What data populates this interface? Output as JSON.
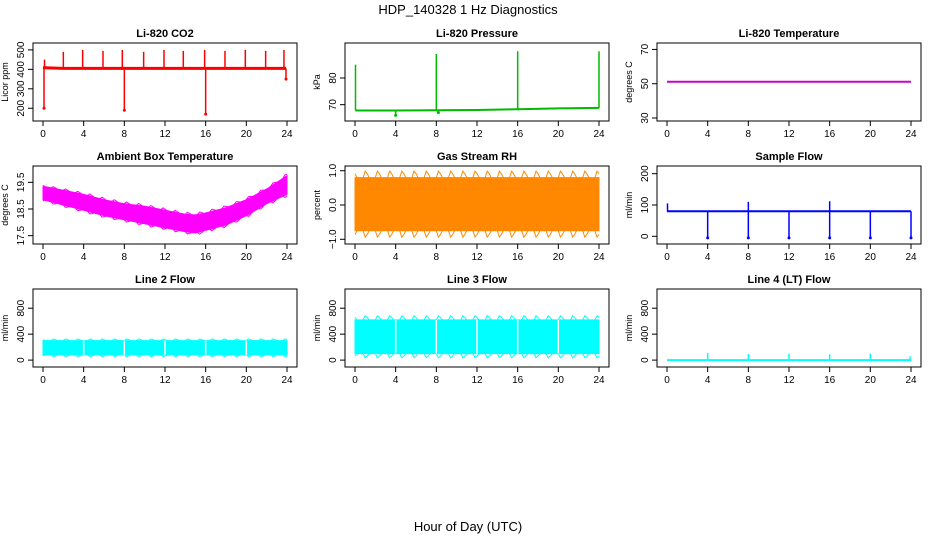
{
  "figure": {
    "title": "HDP_140328  1 Hz Diagnostics",
    "xlabel": "Hour of Day (UTC)"
  },
  "chart_data": [
    {
      "type": "line",
      "title": "Li-820 CO2",
      "ylabel": "Licor ppm",
      "color": "#ff0000",
      "xlim": [
        0,
        24
      ],
      "xticks": [
        0,
        4,
        8,
        12,
        16,
        20,
        24
      ],
      "ylim": [
        150,
        520
      ],
      "yticks": [
        200,
        300,
        400,
        500
      ],
      "ytick_labels": [
        "200",
        "300",
        "400",
        "500"
      ],
      "series": [
        {
          "x": [
            0,
            0.2,
            2,
            4,
            8,
            12,
            16,
            20,
            23.9
          ],
          "y": [
            410,
            408,
            405,
            405,
            405,
            405,
            405,
            405,
            405
          ],
          "spikes_high": [
            [
              0.15,
              450
            ],
            [
              2.0,
              490
            ],
            [
              3.9,
              500
            ],
            [
              5.9,
              495
            ],
            [
              7.8,
              500
            ],
            [
              9.9,
              490
            ],
            [
              11.9,
              500
            ],
            [
              13.8,
              495
            ],
            [
              15.9,
              500
            ],
            [
              17.9,
              495
            ],
            [
              19.9,
              500
            ],
            [
              21.9,
              495
            ],
            [
              23.7,
              500
            ]
          ],
          "spikes_low": [
            [
              0.1,
              200
            ],
            [
              8.0,
              190
            ],
            [
              16.0,
              170
            ],
            [
              23.9,
              350
            ]
          ]
        }
      ]
    },
    {
      "type": "line",
      "title": "Li-820 Pressure",
      "ylabel": "kPa",
      "color": "#00bb00",
      "xlim": [
        0,
        24
      ],
      "xticks": [
        0,
        4,
        8,
        12,
        16,
        20,
        24
      ],
      "ylim": [
        65,
        92
      ],
      "yticks": [
        70,
        80
      ],
      "ytick_labels": [
        "70",
        "80"
      ],
      "series": [
        {
          "x": [
            0.05,
            4,
            8,
            12,
            16,
            20,
            24
          ],
          "y": [
            67.8,
            67.8,
            67.9,
            68.0,
            68.3,
            68.6,
            68.8
          ],
          "spikes_high": [
            [
              0.05,
              85
            ],
            [
              8.0,
              89
            ],
            [
              16.0,
              90
            ],
            [
              24.0,
              90
            ]
          ],
          "spikes_low": [
            [
              4.0,
              66
            ],
            [
              8.2,
              67
            ]
          ]
        }
      ]
    },
    {
      "type": "line",
      "title": "Li-820 Temperature",
      "ylabel": "degrees C",
      "color": "#cc00cc",
      "xlim": [
        0,
        24
      ],
      "xticks": [
        0,
        4,
        8,
        12,
        16,
        20,
        24
      ],
      "ylim": [
        30,
        72
      ],
      "yticks": [
        30,
        50,
        70
      ],
      "ytick_labels": [
        "30",
        "50",
        "70"
      ],
      "series": [
        {
          "x": [
            0,
            24
          ],
          "y": [
            51.2,
            51.2
          ]
        }
      ]
    },
    {
      "type": "area",
      "title": "Ambient Box Temperature",
      "ylabel": "degrees C",
      "color": "#ff00ff",
      "xlim": [
        0,
        24
      ],
      "xticks": [
        0,
        4,
        8,
        12,
        16,
        20,
        24
      ],
      "ylim": [
        17.3,
        20.0
      ],
      "yticks": [
        17.5,
        18.5,
        19.5
      ],
      "ytick_labels": [
        "17.5",
        "18.5",
        "19.5"
      ],
      "series": [
        {
          "x": [
            0,
            2,
            4,
            6,
            8,
            10,
            12,
            14,
            15,
            16,
            18,
            20,
            22,
            24
          ],
          "upper": [
            19.35,
            19.2,
            19.05,
            18.85,
            18.7,
            18.6,
            18.45,
            18.3,
            18.28,
            18.35,
            18.55,
            18.85,
            19.25,
            19.75
          ],
          "lower": [
            18.85,
            18.65,
            18.45,
            18.25,
            18.1,
            17.95,
            17.8,
            17.65,
            17.6,
            17.7,
            17.9,
            18.25,
            18.7,
            19.05
          ]
        }
      ]
    },
    {
      "type": "area",
      "title": "Gas Stream RH",
      "ylabel": "percent",
      "color": "#ff8800",
      "xlim": [
        0,
        24
      ],
      "xticks": [
        0,
        4,
        8,
        12,
        16,
        20,
        24
      ],
      "ylim": [
        -1.05,
        1.05
      ],
      "yticks": [
        -1.0,
        0.0,
        1.0
      ],
      "ytick_labels": [
        "−1.0",
        "0.0",
        "1.0"
      ],
      "series": [
        {
          "x": [
            0,
            24
          ],
          "upper": [
            0.8,
            0.8
          ],
          "lower": [
            -0.75,
            -0.75
          ]
        }
      ]
    },
    {
      "type": "line",
      "title": "Sample Flow",
      "ylabel": "ml/min",
      "color": "#0000ff",
      "xlim": [
        0,
        24
      ],
      "xticks": [
        0,
        4,
        8,
        12,
        16,
        20,
        24
      ],
      "ylim": [
        -15,
        215
      ],
      "yticks": [
        0,
        100,
        200
      ],
      "ytick_labels": [
        "0",
        "100",
        "200"
      ],
      "series": [
        {
          "x": [
            0,
            24
          ],
          "y": [
            80,
            80
          ],
          "spikes_high": [
            [
              0.05,
              105
            ],
            [
              8.0,
              110
            ],
            [
              16.0,
              112
            ]
          ],
          "spikes_low": [
            [
              4.0,
              -5
            ],
            [
              8.0,
              -5
            ],
            [
              12.0,
              -5
            ],
            [
              16.0,
              -5
            ],
            [
              20.0,
              -5
            ],
            [
              24.0,
              -5
            ]
          ]
        }
      ]
    },
    {
      "type": "area",
      "title": "Line 2 Flow",
      "ylabel": "ml/min",
      "color": "#00ffff",
      "xlim": [
        0,
        24
      ],
      "xticks": [
        0,
        4,
        8,
        12,
        16,
        20,
        24
      ],
      "ylim": [
        -60,
        1050
      ],
      "yticks": [
        0,
        400,
        800
      ],
      "ytick_labels": [
        "0",
        "400",
        "800"
      ],
      "series": [
        {
          "x": [
            0,
            24
          ],
          "upper": [
            300,
            300
          ],
          "lower": [
            80,
            80
          ],
          "gaps": [
            4,
            8,
            12,
            16,
            20
          ]
        }
      ]
    },
    {
      "type": "area",
      "title": "Line 3 Flow",
      "ylabel": "ml/min",
      "color": "#00ffff",
      "xlim": [
        0,
        24
      ],
      "xticks": [
        0,
        4,
        8,
        12,
        16,
        20,
        24
      ],
      "ylim": [
        -60,
        1050
      ],
      "yticks": [
        0,
        400,
        800
      ],
      "ytick_labels": [
        "0",
        "400",
        "800"
      ],
      "series": [
        {
          "x": [
            0,
            24
          ],
          "upper": [
            620,
            620
          ],
          "lower": [
            100,
            100
          ],
          "gaps": [
            4,
            8,
            12,
            16,
            20
          ]
        }
      ]
    },
    {
      "type": "line",
      "title": "Line 4 (LT) Flow",
      "ylabel": "ml/min",
      "color": "#00ffff",
      "xlim": [
        0,
        24
      ],
      "xticks": [
        0,
        4,
        8,
        12,
        16,
        20,
        24
      ],
      "ylim": [
        -60,
        1050
      ],
      "yticks": [
        0,
        400,
        800
      ],
      "ytick_labels": [
        "0",
        "400",
        "800"
      ],
      "series": [
        {
          "x": [
            0,
            24
          ],
          "y": [
            0,
            0
          ],
          "spikes_high": [
            [
              4.0,
              110
            ],
            [
              8.0,
              95
            ],
            [
              12.0,
              100
            ],
            [
              16.0,
              90
            ],
            [
              20.0,
              100
            ],
            [
              23.9,
              60
            ]
          ]
        }
      ]
    }
  ]
}
